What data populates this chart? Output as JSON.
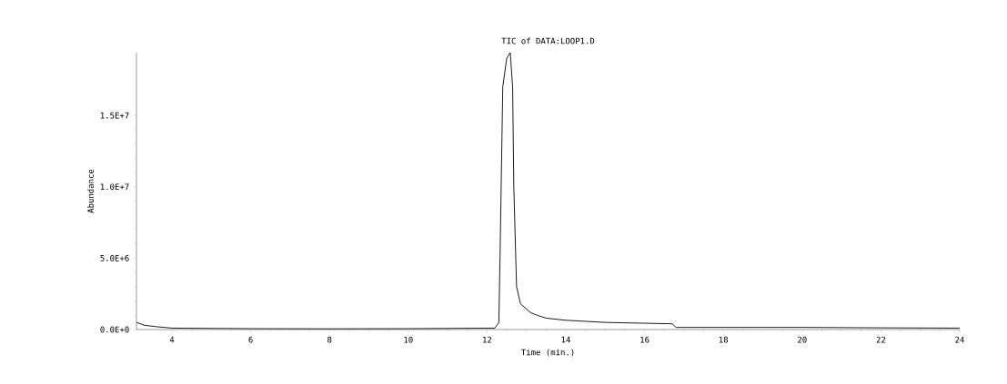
{
  "chart_data": {
    "type": "line",
    "title": "TIC of DATA:LOOP1.D",
    "xlabel": "Time (min.)",
    "ylabel": "Abundance",
    "xlim": [
      3.1,
      24
    ],
    "xticks": [
      4,
      6,
      8,
      10,
      12,
      14,
      16,
      18,
      20,
      22,
      24
    ],
    "ylim": [
      0,
      19400000
    ],
    "yticks": [
      {
        "value": 0,
        "label": "0.0E+0"
      },
      {
        "value": 5000000,
        "label": "5.0E+6"
      },
      {
        "value": 10000000,
        "label": "1.0E+7"
      },
      {
        "value": 15000000,
        "label": "1.5E+7"
      }
    ],
    "grid": false,
    "series": [
      {
        "color": "#000000",
        "x": [
          3.1,
          3.3,
          3.6,
          4,
          6,
          8,
          10,
          12.2,
          12.3,
          12.33,
          12.4,
          12.5,
          12.59,
          12.65,
          12.68,
          12.75,
          12.85,
          13.1,
          13.27,
          13.5,
          14,
          15,
          16.7,
          16.8,
          18,
          20,
          22,
          24
        ],
        "values": [
          500000,
          300000,
          200000,
          100000,
          60000,
          50000,
          60000,
          100000,
          500000,
          5000000,
          17000000,
          19000000,
          19400000,
          17000000,
          10000000,
          3000000,
          1800000,
          1200000,
          1000000,
          800000,
          650000,
          500000,
          400000,
          150000,
          150000,
          150000,
          120000,
          100000
        ]
      }
    ]
  }
}
